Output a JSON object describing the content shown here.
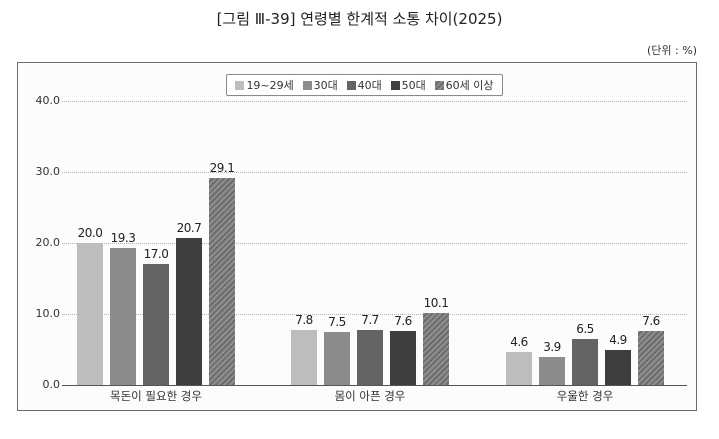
{
  "title": "[그림 Ⅲ-39] 연령별 한계적 소통 차이(2025)",
  "unit_label": "(단위 : %)",
  "legend": [
    {
      "label": "19~29세",
      "color": "#bdbdbd",
      "hatched": false
    },
    {
      "label": "30대",
      "color": "#8c8c8c",
      "hatched": false
    },
    {
      "label": "40대",
      "color": "#646464",
      "hatched": false
    },
    {
      "label": "50대",
      "color": "#3e3e3e",
      "hatched": false
    },
    {
      "label": "60세 이상",
      "color": "#7d7d7d",
      "hatched": true
    }
  ],
  "y_ticks": [
    "40.0",
    "30.0",
    "20.0",
    "10.0",
    "0.0"
  ],
  "chart_data": {
    "type": "bar",
    "title": "[그림 Ⅲ-39] 연령별 한계적 소통 차이(2025)",
    "unit": "%",
    "categories": [
      "목돈이 필요한 경우",
      "몸이 아픈 경우",
      "우울한 경우"
    ],
    "series": [
      {
        "name": "19~29세",
        "values": [
          20.0,
          7.8,
          4.6
        ]
      },
      {
        "name": "30대",
        "values": [
          19.3,
          7.5,
          3.9
        ]
      },
      {
        "name": "40대",
        "values": [
          17.0,
          7.7,
          6.5
        ]
      },
      {
        "name": "50대",
        "values": [
          20.7,
          7.6,
          4.9
        ]
      },
      {
        "name": "60세 이상",
        "values": [
          29.1,
          10.1,
          7.6
        ]
      }
    ],
    "xlabel": "",
    "ylabel": "",
    "ylim": [
      0,
      40
    ],
    "yticks": [
      0,
      10,
      20,
      30,
      40
    ],
    "grid": true,
    "legend_position": "top-center"
  }
}
